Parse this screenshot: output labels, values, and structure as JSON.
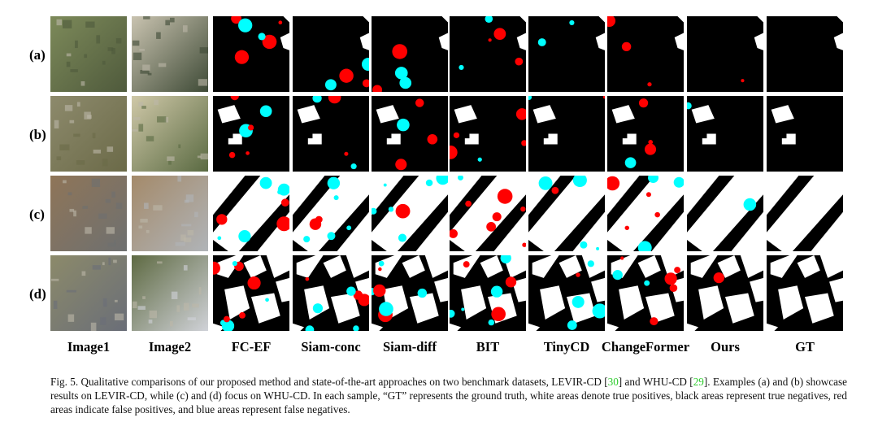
{
  "figure": {
    "row_labels": [
      "(a)",
      "(b)",
      "(c)",
      "(d)"
    ],
    "column_labels": [
      "Image1",
      "Image2",
      "FC-EF",
      "Siam-conc",
      "Siam-diff",
      "BIT",
      "TinyCD",
      "ChangeFormer",
      "Ours",
      "GT"
    ],
    "legend_colors": {
      "true_positive": "#ffffff",
      "true_negative": "#000000",
      "false_positive": "#ff0000",
      "false_negative": "#00ffff"
    }
  },
  "caption": {
    "prefix": "Fig. 5.  Qualitative comparisons of our proposed method and state-of-the-art approaches on two benchmark datasets, LEVIR-CD [",
    "ref1": "30",
    "mid": "] and WHU-CD [",
    "ref2": "29",
    "suffix": "]. Examples (a) and (b) showcase results on LEVIR-CD, while (c) and (d) focus on WHU-CD. In each sample, “GT” represents the ground truth, white areas denote true positives, black areas represent true negatives, red areas indicate false positives, and blue areas represent false negatives."
  }
}
